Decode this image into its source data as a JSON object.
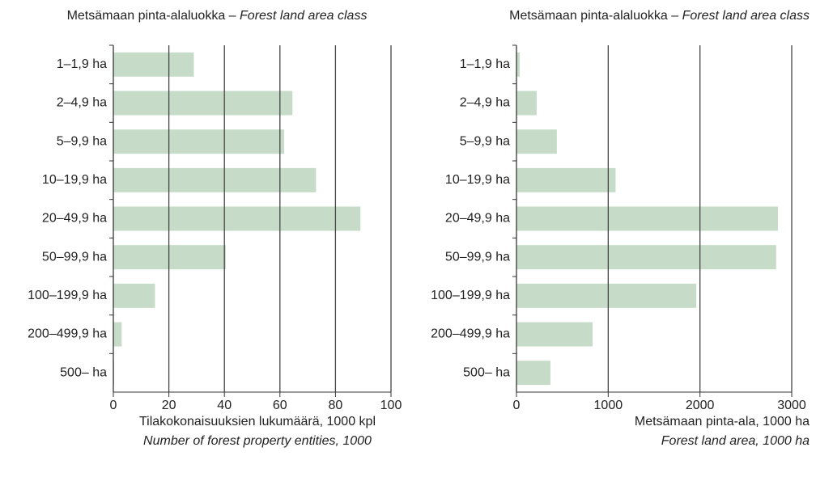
{
  "chart_data": [
    {
      "type": "bar",
      "orientation": "horizontal",
      "title": "Metsämaan pinta-alaluokka –",
      "title_en": "Forest land area class",
      "categories": [
        "1–1,9 ha",
        "2–4,9 ha",
        "5–9,9 ha",
        "10–19,9 ha",
        "20–49,9 ha",
        "50–99,9 ha",
        "100–199,9 ha",
        "200–499,9 ha",
        "500– ha"
      ],
      "values": [
        29,
        64.5,
        61.5,
        73,
        89,
        40.5,
        15,
        3,
        0.3
      ],
      "color": "#c6dcc8",
      "xlim": [
        0,
        100
      ],
      "xticks": [
        0,
        20,
        40,
        60,
        80,
        100
      ],
      "grid": true,
      "xlabel": "Tilakokonaisuuksien lukumäärä, 1000 kpl",
      "xlabel_en": "Number of forest property entities, 1000"
    },
    {
      "type": "bar",
      "orientation": "horizontal",
      "title": "Metsämaan pinta-alaluokka –",
      "title_en": "Forest land area class",
      "categories": [
        "1–1,9 ha",
        "2–4,9 ha",
        "5–9,9 ha",
        "10–19,9 ha",
        "20–49,9 ha",
        "50–99,9 ha",
        "100–199,9 ha",
        "200–499,9 ha",
        "500– ha"
      ],
      "values": [
        35,
        220,
        440,
        1080,
        2850,
        2830,
        1960,
        830,
        370
      ],
      "color": "#c6dcc8",
      "xlim": [
        0,
        3000
      ],
      "xticks": [
        0,
        1000,
        2000,
        3000
      ],
      "grid": true,
      "xlabel": "Metsämaan pinta-ala, 1000 ha",
      "xlabel_en": "Forest land area, 1000 ha"
    }
  ]
}
